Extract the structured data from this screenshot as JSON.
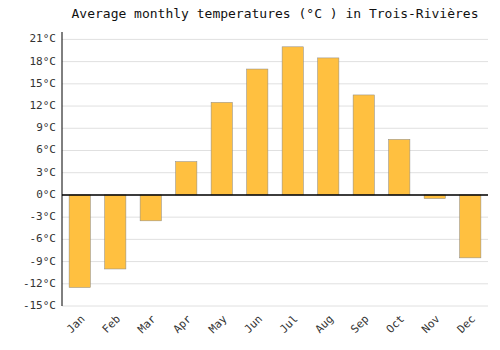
{
  "chart_data": {
    "type": "bar",
    "title": "Average monthly temperatures (°C ) in Trois-Rivières",
    "categories": [
      "Jan",
      "Feb",
      "Mar",
      "Apr",
      "May",
      "Jun",
      "Jul",
      "Aug",
      "Sep",
      "Oct",
      "Nov",
      "Dec"
    ],
    "values": [
      -12.5,
      -10.0,
      -3.5,
      4.5,
      12.5,
      17.0,
      20.0,
      18.5,
      13.5,
      7.5,
      -0.5,
      -8.5
    ],
    "color": "#FFC040",
    "ylim": [
      -15,
      22
    ],
    "yticks": [
      {
        "value": -15,
        "label": "-15°C"
      },
      {
        "value": -12,
        "label": "-12°C"
      },
      {
        "value": -9,
        "label": "-9°C"
      },
      {
        "value": -6,
        "label": "-6°C"
      },
      {
        "value": -3,
        "label": "-3°C"
      },
      {
        "value": 0,
        "label": "0°C"
      },
      {
        "value": 3,
        "label": "3°C"
      },
      {
        "value": 6,
        "label": "6°C"
      },
      {
        "value": 9,
        "label": "9°C"
      },
      {
        "value": 12,
        "label": "12°C"
      },
      {
        "value": 15,
        "label": "15°C"
      },
      {
        "value": 18,
        "label": "18°C"
      },
      {
        "value": 21,
        "label": "21°C"
      }
    ],
    "grid": true
  }
}
